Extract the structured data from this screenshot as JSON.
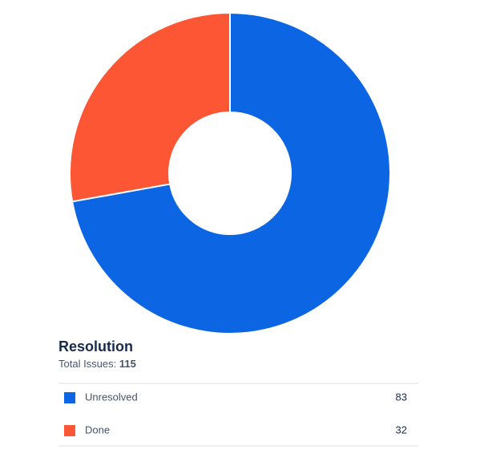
{
  "chart_data": {
    "type": "donut",
    "title": "Resolution",
    "total_label": "Total Issues:",
    "total": 115,
    "categories": [
      "Unresolved",
      "Done"
    ],
    "values": [
      83,
      32
    ],
    "colors": [
      "#0c66e4",
      "#fc5634"
    ]
  }
}
